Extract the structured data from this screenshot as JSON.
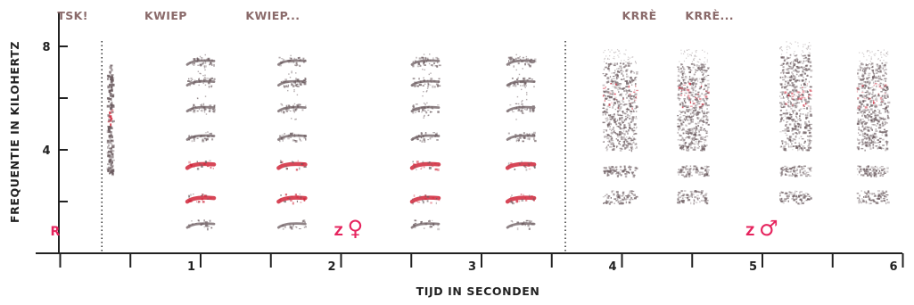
{
  "chart_data": {
    "type": "spectrogram",
    "xlabel": "TIJD IN SECONDEN",
    "ylabel": "FREQUENTIE IN KILOHERTZ",
    "xlim": [
      -0.4,
      6.2
    ],
    "ylim": [
      0,
      9
    ],
    "x_ticks": [
      0,
      1,
      2,
      3,
      4,
      5,
      6
    ],
    "x_tick_labels": [
      "1",
      "2",
      "3",
      "4",
      "5",
      "6"
    ],
    "y_ticks": [
      2,
      4,
      6,
      8
    ],
    "y_tick_labels": [
      "4",
      "8"
    ],
    "grid": false,
    "separators": [
      0.3,
      3.6
    ],
    "call_labels": [
      {
        "text": "TSK!",
        "x": -0.02
      },
      {
        "text": "KWIEP",
        "x": 0.6
      },
      {
        "text": "KWIEP...",
        "x": 1.32
      },
      {
        "text": "KRRÈ",
        "x": 4.0
      },
      {
        "text": "KRRÈ...",
        "x": 4.45
      }
    ],
    "section_labels": [
      {
        "text": "R",
        "x": -0.07,
        "color": "#e6245e"
      },
      {
        "text": "Z ♀",
        "x": 1.95,
        "color": "#e6245e"
      },
      {
        "text": "Z ♂",
        "x": 4.88,
        "color": "#e6245e"
      }
    ],
    "calls": [
      {
        "kind": "click",
        "t": 0.35,
        "fmin": 3.1,
        "fmax": 7.3,
        "peak": 5.3
      },
      {
        "kind": "harmonic",
        "t": 1.0,
        "duration": 0.2,
        "bands": [
          1.1,
          2.1,
          3.4,
          4.5,
          5.6,
          6.6,
          7.4
        ]
      },
      {
        "kind": "harmonic",
        "t": 1.65,
        "duration": 0.2,
        "bands": [
          1.1,
          2.1,
          3.4,
          4.5,
          5.6,
          6.6,
          7.4
        ]
      },
      {
        "kind": "harmonic",
        "t": 2.6,
        "duration": 0.2,
        "bands": [
          1.1,
          2.1,
          3.4,
          4.5,
          5.6,
          6.6,
          7.4
        ]
      },
      {
        "kind": "harmonic",
        "t": 3.28,
        "duration": 0.2,
        "bands": [
          1.1,
          2.1,
          3.4,
          4.5,
          5.6,
          6.6,
          7.4
        ]
      },
      {
        "kind": "noise",
        "t": 3.98,
        "duration": 0.24,
        "fmin": 2.1,
        "fmax": 7.4
      },
      {
        "kind": "noise",
        "t": 4.5,
        "duration": 0.22,
        "fmin": 2.1,
        "fmax": 7.4
      },
      {
        "kind": "noise",
        "t": 5.23,
        "duration": 0.22,
        "fmin": 2.1,
        "fmax": 7.7
      },
      {
        "kind": "noise",
        "t": 5.78,
        "duration": 0.22,
        "fmin": 2.1,
        "fmax": 7.4
      }
    ],
    "colors": {
      "axis": "#222222",
      "label_brown": "#8a6a6a",
      "accent": "#e6245e",
      "trace": "#6a5a5e",
      "hot": "#d0263a"
    }
  }
}
